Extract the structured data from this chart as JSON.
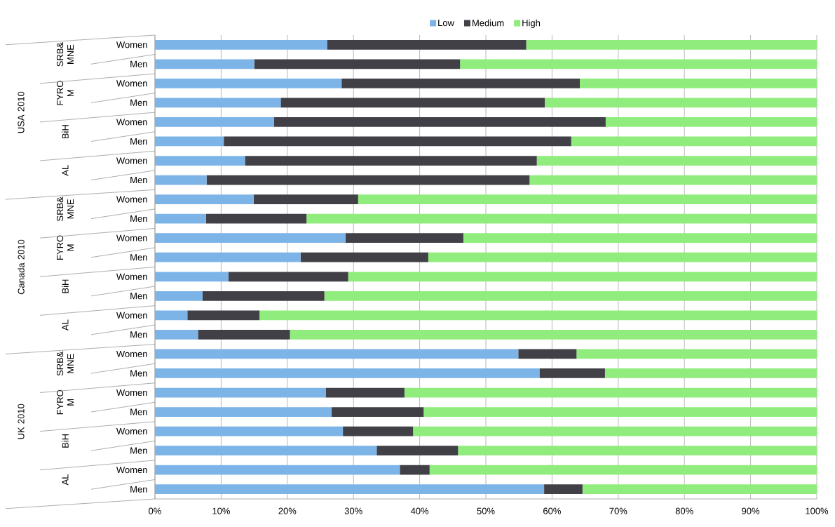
{
  "chart_data": {
    "type": "bar",
    "orientation": "horizontal",
    "stacked": true,
    "categories": [
      "Women",
      "Men",
      "Women",
      "Men",
      "Women",
      "Men",
      "Women",
      "Men",
      "Women",
      "Men",
      "Women",
      "Men",
      "Women",
      "Men",
      "Women",
      "Men",
      "Women",
      "Men",
      "Women",
      "Men",
      "Women",
      "Men",
      "Women",
      "Men"
    ],
    "series": [
      {
        "name": "Low",
        "color": "#7db4e8",
        "values": [
          26.0,
          15.0,
          28.2,
          19.0,
          18.0,
          10.4,
          13.6,
          7.8,
          14.9,
          7.7,
          28.8,
          22.0,
          11.1,
          7.2,
          4.9,
          6.5,
          54.9,
          58.1,
          25.8,
          26.7,
          28.4,
          33.5,
          37.0,
          58.8
        ]
      },
      {
        "name": "Medium",
        "color": "#414046",
        "values": [
          30.1,
          31.1,
          36.0,
          39.9,
          50.1,
          52.5,
          44.1,
          48.8,
          15.8,
          15.2,
          17.8,
          19.3,
          18.1,
          18.4,
          10.9,
          13.9,
          8.8,
          9.9,
          11.9,
          13.9,
          10.6,
          12.3,
          4.5,
          5.8
        ]
      },
      {
        "name": "High",
        "color": "#90ed7d",
        "values": [
          43.9,
          53.9,
          35.8,
          41.1,
          31.9,
          37.1,
          42.3,
          43.4,
          69.3,
          77.1,
          53.4,
          58.7,
          70.8,
          74.4,
          84.2,
          79.6,
          36.3,
          32.0,
          62.3,
          59.4,
          61.0,
          54.2,
          58.5,
          35.4
        ]
      }
    ],
    "xlim": [
      0,
      100
    ],
    "xticks": [
      {
        "value": 0,
        "label": "0%"
      },
      {
        "value": 10,
        "label": "10%"
      },
      {
        "value": 20,
        "label": "20%"
      },
      {
        "value": 30,
        "label": "30%"
      },
      {
        "value": 40,
        "label": "40%"
      },
      {
        "value": 50,
        "label": "50%"
      },
      {
        "value": 60,
        "label": "60%"
      },
      {
        "value": 70,
        "label": "70%"
      },
      {
        "value": 80,
        "label": "80%"
      },
      {
        "value": 90,
        "label": "90%"
      },
      {
        "value": 100,
        "label": "100%"
      }
    ],
    "grid": "x",
    "legend": "top",
    "annotations": [
      "USA 2010",
      "SRB& MNE",
      "FYRO M",
      "BiH",
      "AL",
      "Canada 2010",
      "SRB& MNE",
      "FYRO M",
      "BiH",
      "AL",
      "UK 2010",
      "SRB& MNE",
      "FYRO M",
      "BiH",
      "AL"
    ]
  }
}
